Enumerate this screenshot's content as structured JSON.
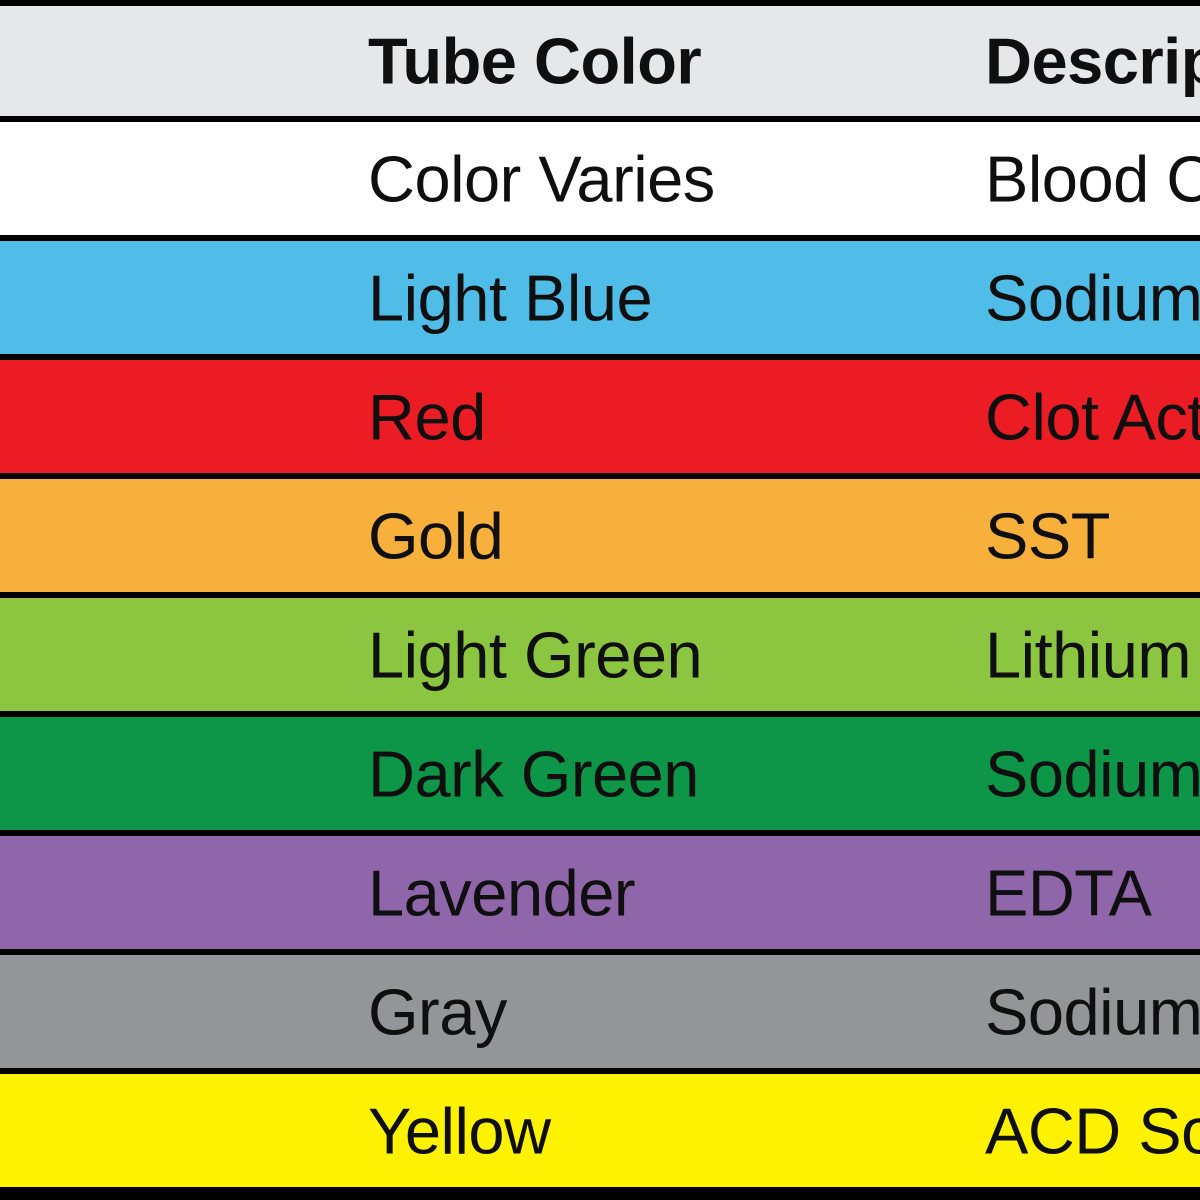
{
  "table": {
    "header_bg": "#E6E7E8",
    "border_color": "#000000",
    "text_color": "#0f0f0f",
    "header": {
      "tube_color": "Tube Color",
      "description": "Descrip"
    },
    "rows": [
      {
        "color_name": "Color Varies",
        "description": "Blood C",
        "bg": "#FFFFFF"
      },
      {
        "color_name": "Light Blue",
        "description": "Sodium",
        "bg": "#4FBDE7"
      },
      {
        "color_name": "Red",
        "description": "Clot Act",
        "bg": "#EC1C24"
      },
      {
        "color_name": "Gold",
        "description": "SST",
        "bg": "#F7B03C"
      },
      {
        "color_name": "Light Green",
        "description": "Lithium",
        "bg": "#8CC640"
      },
      {
        "color_name": "Dark Green",
        "description": "Sodium",
        "bg": "#0E9648"
      },
      {
        "color_name": "Lavender",
        "description": "EDTA",
        "bg": "#8F66AA"
      },
      {
        "color_name": "Gray",
        "description": "Sodium",
        "bg": "#939598"
      },
      {
        "color_name": "Yellow",
        "description": "ACD So",
        "bg": "#FFF200"
      }
    ]
  },
  "chart_data": {
    "type": "table",
    "title": "",
    "columns": [
      "Tube Color",
      "Descrip"
    ],
    "rows": [
      [
        "Color Varies",
        "Blood C"
      ],
      [
        "Light Blue",
        "Sodium"
      ],
      [
        "Red",
        "Clot Act"
      ],
      [
        "Gold",
        "SST"
      ],
      [
        "Light Green",
        "Lithium"
      ],
      [
        "Dark Green",
        "Sodium"
      ],
      [
        "Lavender",
        "EDTA"
      ],
      [
        "Gray",
        "Sodium"
      ],
      [
        "Yellow",
        "ACD So"
      ]
    ],
    "row_colors": [
      "#FFFFFF",
      "#4FBDE7",
      "#EC1C24",
      "#F7B03C",
      "#8CC640",
      "#0E9648",
      "#8F66AA",
      "#939598",
      "#FFF200"
    ],
    "header_color": "#E6E7E8",
    "layout": "right edge of table cropped at image boundary; description column text clipped"
  }
}
